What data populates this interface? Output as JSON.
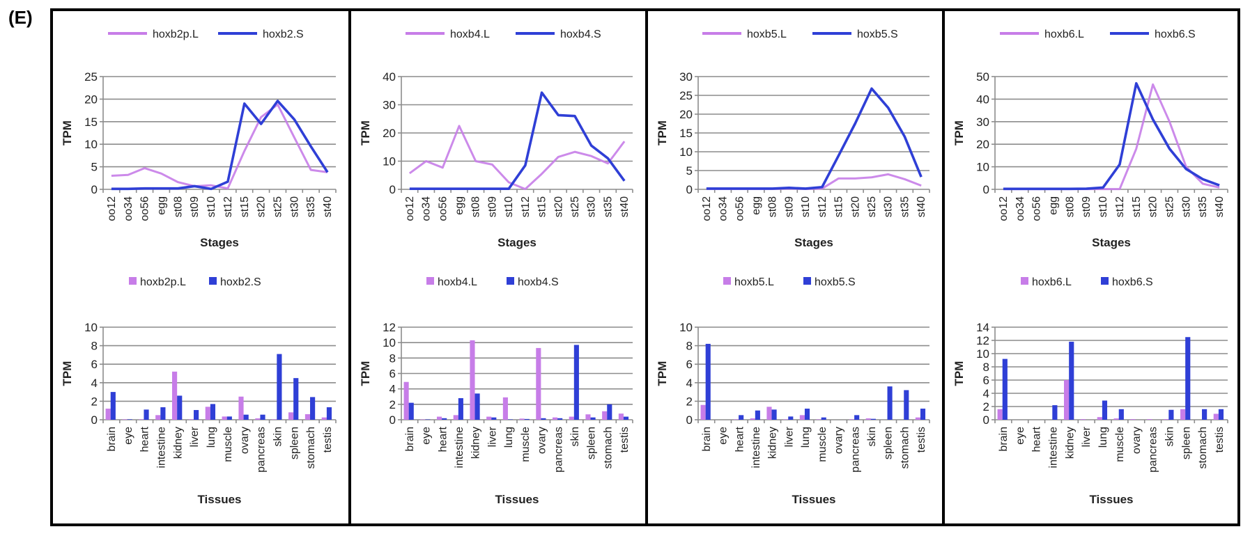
{
  "figure_label": "(E)",
  "colors": {
    "L": "#c77de8",
    "S": "#2f3fd6"
  },
  "chart_data": [
    {
      "type": "line",
      "panel": 1,
      "title": "",
      "xlabel": "Stages",
      "ylabel": "TPM",
      "ylim": [
        0,
        25
      ],
      "yticks": [
        0,
        5,
        10,
        15,
        20,
        25
      ],
      "grid": true,
      "legend": "top",
      "categories": [
        "oo12",
        "oo34",
        "oo56",
        "egg",
        "st08",
        "st09",
        "st10",
        "st12",
        "st15",
        "st20",
        "st25",
        "st30",
        "st35",
        "st40"
      ],
      "series": [
        {
          "name": "hoxb2p.L",
          "color_key": "L",
          "values": [
            3.0,
            3.2,
            4.7,
            3.5,
            1.6,
            0.7,
            0.9,
            0.2,
            8.5,
            16.0,
            18.8,
            11.5,
            4.3,
            3.8
          ]
        },
        {
          "name": "hoxb2.S",
          "color_key": "S",
          "values": [
            0.1,
            0.1,
            0.2,
            0.2,
            0.2,
            0.7,
            0.1,
            1.7,
            19.0,
            14.5,
            19.6,
            15.5,
            9.5,
            3.8
          ]
        }
      ]
    },
    {
      "type": "bar",
      "panel": 1,
      "title": "",
      "xlabel": "Tissues",
      "ylabel": "TPM",
      "ylim": [
        0,
        10
      ],
      "yticks": [
        0,
        2,
        4,
        6,
        8,
        10
      ],
      "grid": true,
      "legend": "top",
      "categories": [
        "brain",
        "eye",
        "heart",
        "intestine",
        "kidney",
        "liver",
        "lung",
        "muscle",
        "ovary",
        "pancreas",
        "skin",
        "spleen",
        "stomach",
        "testis"
      ],
      "series": [
        {
          "name": "hoxb2p.L",
          "color_key": "L",
          "values": [
            1.2,
            0.05,
            0.05,
            0.5,
            5.2,
            0.05,
            1.4,
            0.35,
            2.5,
            0.15,
            0.05,
            0.8,
            0.6,
            0.25
          ]
        },
        {
          "name": "hoxb2.S",
          "color_key": "S",
          "values": [
            3.0,
            0.05,
            1.1,
            1.35,
            2.6,
            1.05,
            1.7,
            0.35,
            0.55,
            0.55,
            7.1,
            4.5,
            2.45,
            1.35
          ]
        }
      ]
    },
    {
      "type": "line",
      "panel": 2,
      "title": "",
      "xlabel": "Stages",
      "ylabel": "TPM",
      "ylim": [
        0,
        40
      ],
      "yticks": [
        0,
        10,
        20,
        30,
        40
      ],
      "grid": true,
      "legend": "top",
      "categories": [
        "oo12",
        "oo34",
        "oo56",
        "egg",
        "st08",
        "st09",
        "st10",
        "st12",
        "st15",
        "st20",
        "st25",
        "st30",
        "st35",
        "st40"
      ],
      "series": [
        {
          "name": "hoxb4.L",
          "color_key": "L",
          "values": [
            5.7,
            10.0,
            7.7,
            22.5,
            10.0,
            8.8,
            2.5,
            0.1,
            5.5,
            11.5,
            13.3,
            11.8,
            9.2,
            17.0
          ]
        },
        {
          "name": "hoxb4.S",
          "color_key": "S",
          "values": [
            0.2,
            0.2,
            0.2,
            0.2,
            0.2,
            0.2,
            0.2,
            8.5,
            34.3,
            26.3,
            26.0,
            15.5,
            11.0,
            3.0
          ]
        }
      ]
    },
    {
      "type": "bar",
      "panel": 2,
      "title": "",
      "xlabel": "Tissues",
      "ylabel": "TPM",
      "ylim": [
        0,
        12
      ],
      "yticks": [
        0,
        2,
        4,
        6,
        8,
        10,
        12
      ],
      "grid": true,
      "legend": "top",
      "categories": [
        "brain",
        "eye",
        "heart",
        "intestine",
        "kidney",
        "liver",
        "lung",
        "muscle",
        "ovary",
        "pancreas",
        "skin",
        "spleen",
        "stomach",
        "testis"
      ],
      "series": [
        {
          "name": "hoxb4.L",
          "color_key": "L",
          "values": [
            4.9,
            0.05,
            0.4,
            0.6,
            10.3,
            0.4,
            2.9,
            0.15,
            9.3,
            0.3,
            0.4,
            0.7,
            1.1,
            0.8
          ]
        },
        {
          "name": "hoxb4.S",
          "color_key": "S",
          "values": [
            2.2,
            0.05,
            0.2,
            2.8,
            3.4,
            0.3,
            0.05,
            0.1,
            0.2,
            0.2,
            9.7,
            0.3,
            2.0,
            0.4
          ]
        }
      ]
    },
    {
      "type": "line",
      "panel": 3,
      "title": "",
      "xlabel": "Stages",
      "ylabel": "TPM",
      "ylim": [
        0,
        30
      ],
      "yticks": [
        0,
        5,
        10,
        15,
        20,
        25,
        30
      ],
      "grid": true,
      "legend": "top",
      "categories": [
        "oo12",
        "oo34",
        "oo56",
        "egg",
        "st08",
        "st09",
        "st10",
        "st12",
        "st15",
        "st20",
        "st25",
        "st30",
        "st35",
        "st40"
      ],
      "series": [
        {
          "name": "hoxb5.L",
          "color_key": "L",
          "values": [
            0.1,
            0.1,
            0.1,
            0.1,
            0.1,
            0.2,
            0.1,
            0.2,
            2.9,
            2.9,
            3.2,
            4.0,
            2.7,
            1.0
          ]
        },
        {
          "name": "hoxb5.S",
          "color_key": "S",
          "values": [
            0.2,
            0.2,
            0.2,
            0.2,
            0.2,
            0.4,
            0.2,
            0.6,
            9.0,
            17.5,
            26.8,
            21.7,
            14.0,
            3.3
          ]
        }
      ]
    },
    {
      "type": "bar",
      "panel": 3,
      "title": "",
      "xlabel": "Tissues",
      "ylabel": "TPM",
      "ylim": [
        0,
        10
      ],
      "yticks": [
        0,
        2,
        4,
        6,
        8,
        10
      ],
      "grid": true,
      "legend": "top",
      "categories": [
        "brain",
        "eye",
        "heart",
        "intestine",
        "kidney",
        "liver",
        "lung",
        "muscle",
        "ovary",
        "pancreas",
        "skin",
        "spleen",
        "stomach",
        "testis"
      ],
      "series": [
        {
          "name": "hoxb5.L",
          "color_key": "L",
          "values": [
            1.6,
            0.0,
            0.05,
            0.15,
            1.4,
            0.05,
            0.5,
            0.05,
            0.0,
            0.05,
            0.15,
            0.0,
            0.0,
            0.25
          ]
        },
        {
          "name": "hoxb5.S",
          "color_key": "S",
          "values": [
            8.2,
            0.0,
            0.5,
            1.0,
            1.1,
            0.35,
            1.2,
            0.25,
            0.0,
            0.5,
            0.1,
            3.6,
            3.2,
            1.2
          ]
        }
      ]
    },
    {
      "type": "line",
      "panel": 4,
      "title": "",
      "xlabel": "Stages",
      "ylabel": "TPM",
      "ylim": [
        0,
        50
      ],
      "yticks": [
        0,
        10,
        20,
        30,
        40,
        50
      ],
      "grid": true,
      "legend": "top",
      "categories": [
        "oo12",
        "oo34",
        "oo56",
        "egg",
        "st08",
        "st09",
        "st10",
        "st12",
        "st15",
        "st20",
        "st25",
        "st30",
        "st35",
        "st40"
      ],
      "series": [
        {
          "name": "hoxb6.L",
          "color_key": "L",
          "values": [
            0.1,
            0.1,
            0.1,
            0.1,
            0.1,
            0.1,
            0.1,
            0.1,
            18.0,
            46.5,
            30.0,
            10.0,
            2.5,
            0.8
          ]
        },
        {
          "name": "hoxb6.S",
          "color_key": "S",
          "values": [
            0.2,
            0.2,
            0.2,
            0.2,
            0.2,
            0.3,
            0.8,
            11.0,
            47.0,
            31.0,
            18.0,
            9.0,
            4.5,
            1.8
          ]
        }
      ]
    },
    {
      "type": "bar",
      "panel": 4,
      "title": "",
      "xlabel": "Tissues",
      "ylabel": "TPM",
      "ylim": [
        0,
        14
      ],
      "yticks": [
        0,
        2,
        4,
        6,
        8,
        10,
        12,
        14
      ],
      "grid": true,
      "legend": "top",
      "categories": [
        "brain",
        "eye",
        "heart",
        "intestine",
        "kidney",
        "liver",
        "lung",
        "muscle",
        "ovary",
        "pancreas",
        "skin",
        "spleen",
        "stomach",
        "testis"
      ],
      "series": [
        {
          "name": "hoxb6.L",
          "color_key": "L",
          "values": [
            1.6,
            0.0,
            0.0,
            0.0,
            6.0,
            0.1,
            0.4,
            0.2,
            0.1,
            0.1,
            0.1,
            1.6,
            0.0,
            0.9
          ]
        },
        {
          "name": "hoxb6.S",
          "color_key": "S",
          "values": [
            9.2,
            0.0,
            0.0,
            2.2,
            11.8,
            0.0,
            2.9,
            1.6,
            0.0,
            0.0,
            1.5,
            12.5,
            1.6,
            1.6
          ]
        }
      ]
    }
  ]
}
